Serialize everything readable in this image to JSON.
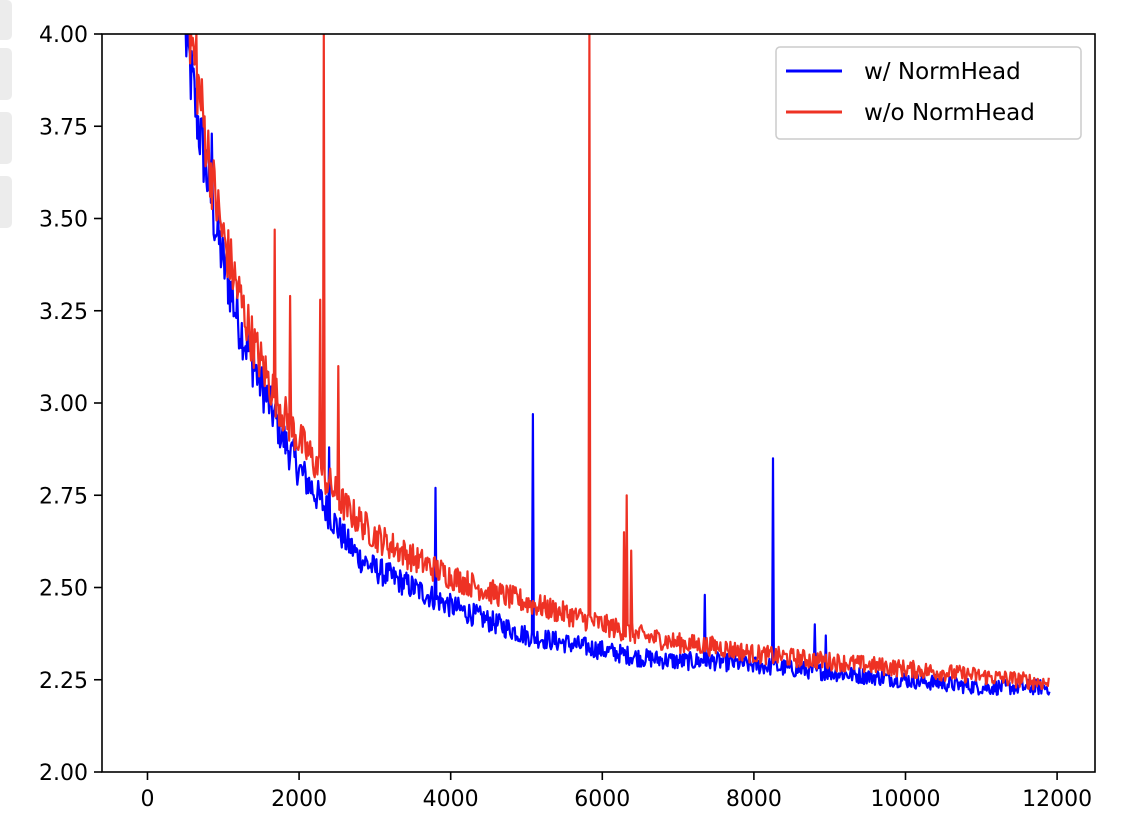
{
  "chart_data": {
    "type": "line",
    "title": "",
    "xlabel": "",
    "ylabel": "",
    "xlim": [
      -600,
      12500
    ],
    "ylim": [
      2.0,
      4.0
    ],
    "xticks": [
      0,
      2000,
      4000,
      6000,
      8000,
      10000,
      12000
    ],
    "xtick_labels": [
      "0",
      "2000",
      "4000",
      "6000",
      "8000",
      "10000",
      "12000"
    ],
    "yticks": [
      2.0,
      2.25,
      2.5,
      2.75,
      3.0,
      3.25,
      3.5,
      3.75,
      4.0
    ],
    "ytick_labels": [
      "2.00",
      "2.25",
      "2.50",
      "2.75",
      "3.00",
      "3.25",
      "3.50",
      "3.75",
      "4.00"
    ],
    "grid": false,
    "legend_position": "top-right",
    "series": [
      {
        "name": "w/ NormHead",
        "color": "#0000ff",
        "x": [
          500,
          600,
          700,
          800,
          900,
          1000,
          1200,
          1400,
          1600,
          1800,
          2000,
          2200,
          2400,
          2600,
          2800,
          3000,
          3500,
          4000,
          4500,
          5000,
          5500,
          6000,
          6500,
          7000,
          7500,
          8000,
          8500,
          9000,
          9500,
          10000,
          10500,
          11000,
          11500,
          11900
        ],
        "y": [
          4.0,
          3.85,
          3.72,
          3.6,
          3.48,
          3.38,
          3.22,
          3.1,
          3.0,
          2.9,
          2.82,
          2.76,
          2.7,
          2.63,
          2.58,
          2.55,
          2.5,
          2.45,
          2.41,
          2.37,
          2.35,
          2.33,
          2.31,
          2.3,
          2.3,
          2.29,
          2.28,
          2.27,
          2.26,
          2.25,
          2.24,
          2.23,
          2.23,
          2.23
        ],
        "spikes": [
          {
            "x": 850,
            "y": 3.73
          },
          {
            "x": 1050,
            "y": 3.42
          },
          {
            "x": 1400,
            "y": 3.16
          },
          {
            "x": 2400,
            "y": 2.88
          },
          {
            "x": 3800,
            "y": 2.77
          },
          {
            "x": 5080,
            "y": 2.97
          },
          {
            "x": 7250,
            "y": 2.45
          },
          {
            "x": 7350,
            "y": 2.48
          },
          {
            "x": 8250,
            "y": 2.85
          },
          {
            "x": 8800,
            "y": 2.4
          },
          {
            "x": 8950,
            "y": 2.37
          }
        ]
      },
      {
        "name": "w/o NormHead",
        "color": "#ee3224",
        "x": [
          550,
          600,
          700,
          800,
          900,
          1000,
          1200,
          1400,
          1600,
          1800,
          2000,
          2200,
          2400,
          2600,
          2800,
          3000,
          3500,
          4000,
          4500,
          5000,
          5500,
          6000,
          6500,
          7000,
          7500,
          8000,
          8500,
          9000,
          9500,
          10000,
          10500,
          11000,
          11500,
          11900
        ],
        "y": [
          4.0,
          3.95,
          3.82,
          3.68,
          3.55,
          3.45,
          3.3,
          3.16,
          3.06,
          2.97,
          2.9,
          2.84,
          2.78,
          2.72,
          2.68,
          2.64,
          2.58,
          2.53,
          2.49,
          2.46,
          2.43,
          2.4,
          2.37,
          2.35,
          2.34,
          2.32,
          2.31,
          2.3,
          2.29,
          2.28,
          2.27,
          2.26,
          2.25,
          2.24
        ],
        "spikes": [
          {
            "x": 650,
            "y": 4.0
          },
          {
            "x": 1680,
            "y": 3.47
          },
          {
            "x": 1880,
            "y": 3.29
          },
          {
            "x": 2280,
            "y": 3.28
          },
          {
            "x": 2330,
            "y": 4.0
          },
          {
            "x": 2380,
            "y": 4.0
          },
          {
            "x": 2440,
            "y": 3.69
          },
          {
            "x": 2520,
            "y": 3.1
          },
          {
            "x": 5830,
            "y": 4.0
          },
          {
            "x": 6290,
            "y": 2.65
          },
          {
            "x": 6320,
            "y": 2.75
          },
          {
            "x": 6380,
            "y": 2.6
          }
        ]
      }
    ]
  }
}
